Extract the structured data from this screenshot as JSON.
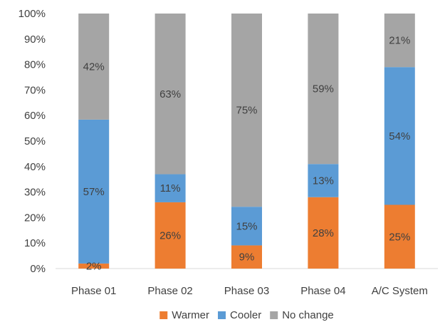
{
  "chart_data": {
    "type": "bar",
    "stacked": true,
    "percent": true,
    "categories": [
      "Phase 01",
      "Phase 02",
      "Phase 03",
      "Phase 04",
      "A/C System"
    ],
    "series": [
      {
        "name": "Warmer",
        "color": "#ED7D31",
        "values": [
          2,
          26,
          9,
          28,
          25
        ],
        "labels": [
          "2%",
          "26%",
          "9%",
          "28%",
          "25%"
        ]
      },
      {
        "name": "Cooler",
        "color": "#5B9BD5",
        "values": [
          57,
          11,
          15,
          13,
          54
        ],
        "labels": [
          "57%",
          "11%",
          "15%",
          "13%",
          "54%"
        ]
      },
      {
        "name": "No change",
        "color": "#A5A5A5",
        "values": [
          42,
          63,
          75,
          59,
          21
        ],
        "labels": [
          "42%",
          "63%",
          "75%",
          "59%",
          "21%"
        ]
      }
    ],
    "ylim": [
      0,
      100
    ],
    "yticks": [
      "0%",
      "10%",
      "20%",
      "30%",
      "40%",
      "50%",
      "60%",
      "70%",
      "80%",
      "90%",
      "100%"
    ],
    "legend_position": "bottom",
    "grid": false
  }
}
